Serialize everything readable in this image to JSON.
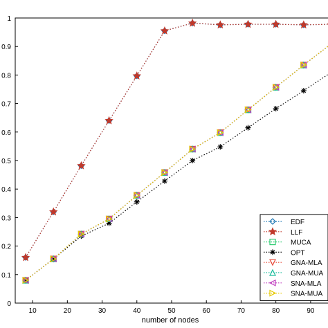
{
  "chart_data": {
    "type": "line",
    "title": "",
    "xlabel": "number of nodes",
    "ylabel": "",
    "xlim": [
      5,
      95
    ],
    "ylim": [
      0,
      1
    ],
    "xticks": [
      10,
      20,
      30,
      40,
      50,
      60,
      70,
      80,
      90
    ],
    "xtick_labels": [
      "10",
      "20",
      "30",
      "40",
      "50",
      "60",
      "70",
      "80",
      "90"
    ],
    "yticks": [
      0,
      0.1,
      0.2,
      0.3,
      0.4,
      0.5,
      0.6,
      0.7,
      0.8,
      0.9,
      1
    ],
    "ytick_labels": [
      "0",
      "0.1",
      "0.2",
      "0.3",
      "0.4",
      "0.5",
      "0.6",
      "0.7",
      "0.8",
      "0.9",
      "1"
    ],
    "grid": false,
    "legend_position": "bottom-right",
    "x": [
      8,
      16,
      24,
      32,
      40,
      48,
      56,
      64,
      72,
      80,
      88,
      96
    ],
    "series": [
      {
        "name": "EDF",
        "color": "#1f77b4",
        "marker": "diamond",
        "values": [
          0.16,
          0.32,
          0.482,
          0.64,
          0.797,
          0.955,
          0.982,
          0.976,
          0.978,
          0.978,
          0.976,
          0.978
        ]
      },
      {
        "name": "LLF",
        "color": "#c0392b",
        "marker": "star",
        "values": [
          0.16,
          0.32,
          0.482,
          0.64,
          0.797,
          0.955,
          0.982,
          0.976,
          0.978,
          0.978,
          0.976,
          0.978
        ]
      },
      {
        "name": "MUCA",
        "color": "#2ecc71",
        "marker": "square",
        "values": [
          0.08,
          0.155,
          0.242,
          0.295,
          0.378,
          0.458,
          0.54,
          0.598,
          0.678,
          0.757,
          0.835,
          0.91
        ]
      },
      {
        "name": "OPT",
        "color": "#000000",
        "marker": "asterisk",
        "values": [
          0.08,
          0.155,
          0.235,
          0.28,
          0.355,
          0.428,
          0.5,
          0.548,
          0.615,
          0.682,
          0.745,
          0.81
        ]
      },
      {
        "name": "GNA-MLA",
        "color": "#e74c3c",
        "marker": "triangle-down",
        "values": [
          0.08,
          0.155,
          0.242,
          0.295,
          0.378,
          0.458,
          0.54,
          0.598,
          0.678,
          0.757,
          0.835,
          0.91
        ]
      },
      {
        "name": "GNA-MUA",
        "color": "#1abc9c",
        "marker": "triangle-up",
        "values": [
          0.08,
          0.155,
          0.242,
          0.295,
          0.378,
          0.458,
          0.54,
          0.598,
          0.678,
          0.757,
          0.835,
          0.91
        ]
      },
      {
        "name": "SNA-MLA",
        "color": "#c040c0",
        "marker": "triangle-left",
        "values": [
          0.08,
          0.155,
          0.242,
          0.295,
          0.378,
          0.458,
          0.54,
          0.598,
          0.678,
          0.757,
          0.835,
          0.91
        ]
      },
      {
        "name": "SNA-MUA",
        "color": "#e6c800",
        "marker": "triangle-right",
        "values": [
          0.08,
          0.155,
          0.242,
          0.295,
          0.378,
          0.458,
          0.54,
          0.598,
          0.678,
          0.757,
          0.835,
          0.91
        ]
      }
    ]
  }
}
